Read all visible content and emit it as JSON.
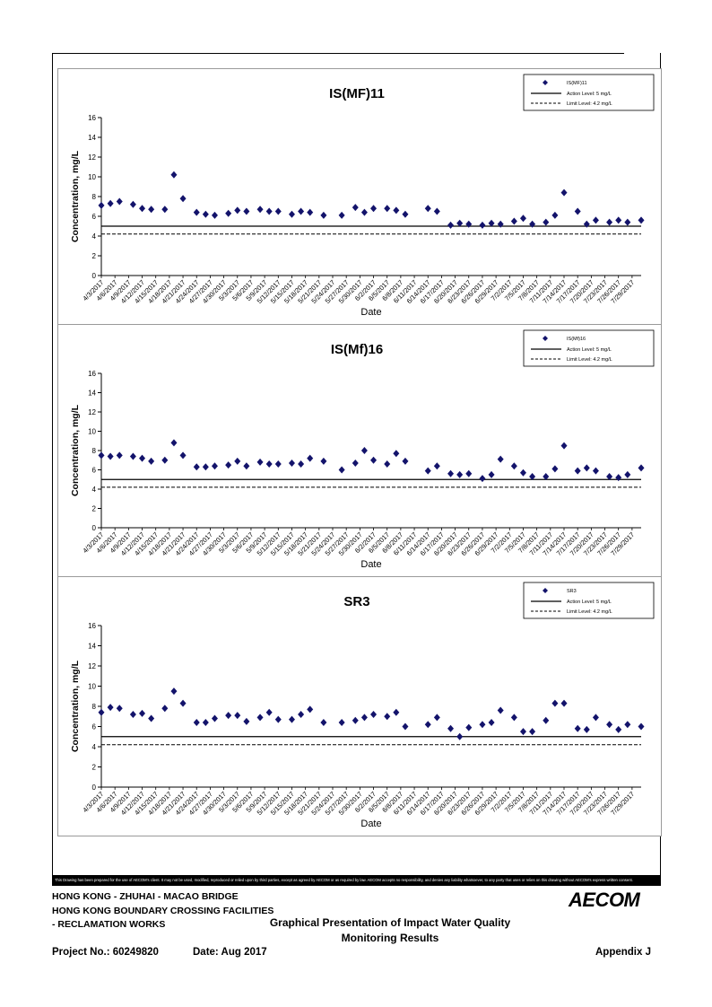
{
  "dates": [
    "4/3/2017",
    "4/6/2017",
    "4/9/2017",
    "4/12/2017",
    "4/15/2017",
    "4/18/2017",
    "4/21/2017",
    "4/24/2017",
    "4/27/2017",
    "4/30/2017",
    "5/3/2017",
    "5/6/2017",
    "5/9/2017",
    "5/12/2017",
    "5/15/2017",
    "5/18/2017",
    "5/21/2017",
    "5/24/2017",
    "5/27/2017",
    "5/30/2017",
    "6/2/2017",
    "6/5/2017",
    "6/8/2017",
    "6/11/2017",
    "6/14/2017",
    "6/17/2017",
    "6/20/2017",
    "6/23/2017",
    "6/26/2017",
    "6/29/2017",
    "7/2/2017",
    "7/5/2017",
    "7/8/2017",
    "7/11/2017",
    "7/14/2017",
    "7/17/2017",
    "7/20/2017",
    "7/23/2017",
    "7/26/2017",
    "7/29/2017"
  ],
  "chart_data": [
    {
      "type": "scatter",
      "title": "IS(MF)11",
      "xlabel": "Date",
      "ylabel": "Concentration, mg/L",
      "ylim": [
        0,
        16
      ],
      "yticks": [
        "0",
        "2",
        "4",
        "6",
        "8",
        "10",
        "12",
        "14",
        "16"
      ],
      "legend": {
        "placement": "top-right",
        "series_label": "IS(MF)11",
        "action_label": "Action Level: 5 mg/L",
        "limit_label": "Limit Level: 4.2 mg/L"
      },
      "action_level": 5,
      "limit_level": 4.2,
      "x_start": "4/3/2017",
      "x_end": "7/31/2017",
      "points": [
        [
          "4/3/2017",
          7.1
        ],
        [
          "4/5/2017",
          7.3
        ],
        [
          "4/7/2017",
          7.5
        ],
        [
          "4/10/2017",
          7.2
        ],
        [
          "4/12/2017",
          6.8
        ],
        [
          "4/14/2017",
          6.7
        ],
        [
          "4/17/2017",
          6.7
        ],
        [
          "4/19/2017",
          10.2
        ],
        [
          "4/21/2017",
          7.8
        ],
        [
          "4/24/2017",
          6.4
        ],
        [
          "4/26/2017",
          6.2
        ],
        [
          "4/28/2017",
          6.1
        ],
        [
          "5/1/2017",
          6.3
        ],
        [
          "5/3/2017",
          6.6
        ],
        [
          "5/5/2017",
          6.5
        ],
        [
          "5/8/2017",
          6.7
        ],
        [
          "5/10/2017",
          6.5
        ],
        [
          "5/12/2017",
          6.5
        ],
        [
          "5/15/2017",
          6.2
        ],
        [
          "5/17/2017",
          6.5
        ],
        [
          "5/19/2017",
          6.4
        ],
        [
          "5/22/2017",
          6.1
        ],
        [
          "5/26/2017",
          6.1
        ],
        [
          "5/29/2017",
          6.9
        ],
        [
          "5/31/2017",
          6.4
        ],
        [
          "6/2/2017",
          6.8
        ],
        [
          "6/5/2017",
          6.8
        ],
        [
          "6/7/2017",
          6.6
        ],
        [
          "6/9/2017",
          6.2
        ],
        [
          "6/14/2017",
          6.8
        ],
        [
          "6/16/2017",
          6.5
        ],
        [
          "6/19/2017",
          5.1
        ],
        [
          "6/21/2017",
          5.3
        ],
        [
          "6/23/2017",
          5.2
        ],
        [
          "6/26/2017",
          5.1
        ],
        [
          "6/28/2017",
          5.3
        ],
        [
          "6/30/2017",
          5.2
        ],
        [
          "7/3/2017",
          5.5
        ],
        [
          "7/5/2017",
          5.8
        ],
        [
          "7/7/2017",
          5.2
        ],
        [
          "7/10/2017",
          5.4
        ],
        [
          "7/12/2017",
          6.1
        ],
        [
          "7/14/2017",
          8.4
        ],
        [
          "7/17/2017",
          6.5
        ],
        [
          "7/19/2017",
          5.2
        ],
        [
          "7/21/2017",
          5.6
        ],
        [
          "7/24/2017",
          5.4
        ],
        [
          "7/26/2017",
          5.6
        ],
        [
          "7/28/2017",
          5.4
        ],
        [
          "7/31/2017",
          5.6
        ]
      ]
    },
    {
      "type": "scatter",
      "title": "IS(Mf)16",
      "xlabel": "Date",
      "ylabel": "Concentration, mg/L",
      "ylim": [
        0,
        16
      ],
      "yticks": [
        "0",
        "2",
        "4",
        "6",
        "8",
        "10",
        "12",
        "14",
        "16"
      ],
      "legend": {
        "placement": "top-right",
        "series_label": "IS(Mf)16",
        "action_label": "Action Level: 5 mg/L",
        "limit_label": "Limit Level: 4.2 mg/L"
      },
      "action_level": 5,
      "limit_level": 4.2,
      "x_start": "4/3/2017",
      "x_end": "7/31/2017",
      "points": [
        [
          "4/3/2017",
          7.5
        ],
        [
          "4/5/2017",
          7.4
        ],
        [
          "4/7/2017",
          7.5
        ],
        [
          "4/10/2017",
          7.4
        ],
        [
          "4/12/2017",
          7.2
        ],
        [
          "4/14/2017",
          6.9
        ],
        [
          "4/17/2017",
          7.0
        ],
        [
          "4/19/2017",
          8.8
        ],
        [
          "4/21/2017",
          7.5
        ],
        [
          "4/24/2017",
          6.3
        ],
        [
          "4/26/2017",
          6.3
        ],
        [
          "4/28/2017",
          6.4
        ],
        [
          "5/1/2017",
          6.5
        ],
        [
          "5/3/2017",
          6.9
        ],
        [
          "5/5/2017",
          6.4
        ],
        [
          "5/8/2017",
          6.8
        ],
        [
          "5/10/2017",
          6.6
        ],
        [
          "5/12/2017",
          6.6
        ],
        [
          "5/15/2017",
          6.7
        ],
        [
          "5/17/2017",
          6.6
        ],
        [
          "5/19/2017",
          7.2
        ],
        [
          "5/22/2017",
          6.9
        ],
        [
          "5/26/2017",
          6.0
        ],
        [
          "5/29/2017",
          6.7
        ],
        [
          "5/31/2017",
          8.0
        ],
        [
          "6/2/2017",
          7.0
        ],
        [
          "6/5/2017",
          6.6
        ],
        [
          "6/7/2017",
          7.7
        ],
        [
          "6/9/2017",
          6.9
        ],
        [
          "6/14/2017",
          5.9
        ],
        [
          "6/16/2017",
          6.4
        ],
        [
          "6/19/2017",
          5.6
        ],
        [
          "6/21/2017",
          5.5
        ],
        [
          "6/23/2017",
          5.6
        ],
        [
          "6/26/2017",
          5.1
        ],
        [
          "6/28/2017",
          5.5
        ],
        [
          "6/30/2017",
          7.1
        ],
        [
          "7/3/2017",
          6.4
        ],
        [
          "7/5/2017",
          5.7
        ],
        [
          "7/7/2017",
          5.3
        ],
        [
          "7/10/2017",
          5.3
        ],
        [
          "7/12/2017",
          6.1
        ],
        [
          "7/14/2017",
          8.5
        ],
        [
          "7/17/2017",
          5.9
        ],
        [
          "7/19/2017",
          6.2
        ],
        [
          "7/21/2017",
          5.9
        ],
        [
          "7/24/2017",
          5.3
        ],
        [
          "7/26/2017",
          5.2
        ],
        [
          "7/28/2017",
          5.5
        ],
        [
          "7/31/2017",
          6.2
        ]
      ]
    },
    {
      "type": "scatter",
      "title": "SR3",
      "xlabel": "Date",
      "ylabel": "Concentration, mg/L",
      "ylim": [
        0,
        16
      ],
      "yticks": [
        "0",
        "2",
        "4",
        "6",
        "8",
        "10",
        "12",
        "14",
        "16"
      ],
      "legend": {
        "placement": "top-right",
        "series_label": "SR3",
        "action_label": "Action Level: 5 mg/L",
        "limit_label": "Limit Level: 4.2 mg/L"
      },
      "action_level": 5,
      "limit_level": 4.2,
      "x_start": "4/3/2017",
      "x_end": "7/31/2017",
      "points": [
        [
          "4/3/2017",
          7.4
        ],
        [
          "4/5/2017",
          7.9
        ],
        [
          "4/7/2017",
          7.8
        ],
        [
          "4/10/2017",
          7.2
        ],
        [
          "4/12/2017",
          7.3
        ],
        [
          "4/14/2017",
          6.8
        ],
        [
          "4/17/2017",
          7.8
        ],
        [
          "4/19/2017",
          9.5
        ],
        [
          "4/21/2017",
          8.3
        ],
        [
          "4/24/2017",
          6.4
        ],
        [
          "4/26/2017",
          6.4
        ],
        [
          "4/28/2017",
          6.8
        ],
        [
          "5/1/2017",
          7.1
        ],
        [
          "5/3/2017",
          7.1
        ],
        [
          "5/5/2017",
          6.5
        ],
        [
          "5/8/2017",
          6.9
        ],
        [
          "5/10/2017",
          7.4
        ],
        [
          "5/12/2017",
          6.7
        ],
        [
          "5/15/2017",
          6.7
        ],
        [
          "5/17/2017",
          7.2
        ],
        [
          "5/19/2017",
          7.7
        ],
        [
          "5/22/2017",
          6.4
        ],
        [
          "5/26/2017",
          6.4
        ],
        [
          "5/29/2017",
          6.6
        ],
        [
          "5/31/2017",
          6.9
        ],
        [
          "6/2/2017",
          7.2
        ],
        [
          "6/5/2017",
          7.0
        ],
        [
          "6/7/2017",
          7.4
        ],
        [
          "6/9/2017",
          6.0
        ],
        [
          "6/14/2017",
          6.2
        ],
        [
          "6/16/2017",
          6.9
        ],
        [
          "6/19/2017",
          5.8
        ],
        [
          "6/21/2017",
          5.0
        ],
        [
          "6/23/2017",
          5.9
        ],
        [
          "6/26/2017",
          6.2
        ],
        [
          "6/28/2017",
          6.4
        ],
        [
          "6/30/2017",
          7.6
        ],
        [
          "7/3/2017",
          6.9
        ],
        [
          "7/5/2017",
          5.5
        ],
        [
          "7/7/2017",
          5.5
        ],
        [
          "7/10/2017",
          6.6
        ],
        [
          "7/12/2017",
          8.3
        ],
        [
          "7/14/2017",
          8.3
        ],
        [
          "7/17/2017",
          5.8
        ],
        [
          "7/19/2017",
          5.7
        ],
        [
          "7/21/2017",
          6.9
        ],
        [
          "7/24/2017",
          6.2
        ],
        [
          "7/26/2017",
          5.7
        ],
        [
          "7/28/2017",
          6.2
        ],
        [
          "7/31/2017",
          6.0
        ]
      ]
    }
  ],
  "footer": {
    "disclaimer": "This Drawing has been prepared for the use of AECOM's client. It may not be used, modified, reproduced or relied upon by third parties, except as agreed by AECOM or as required by law. AECOM accepts no responsibility, and denies any liability whatsoever, to any party that uses or relies on this drawing without AECOM's express written consent.",
    "project_line1": "HONG KONG - ZHUHAI - MACAO BRIDGE",
    "project_line2": "HONG KONG BOUNDARY CROSSING FACILITIES",
    "project_line3": "- RECLAMATION WORKS",
    "doc_title_line1": "Graphical Presentation of Impact Water Quality",
    "doc_title_line2": "Monitoring Results",
    "project_no": "Project No.: 60249820",
    "date": "Date: Aug 2017",
    "appendix": "Appendix J",
    "logo": "AECOM"
  },
  "colors": {
    "marker": "#13136b",
    "line": "#000000",
    "panel_border": "#9a9a9a"
  }
}
